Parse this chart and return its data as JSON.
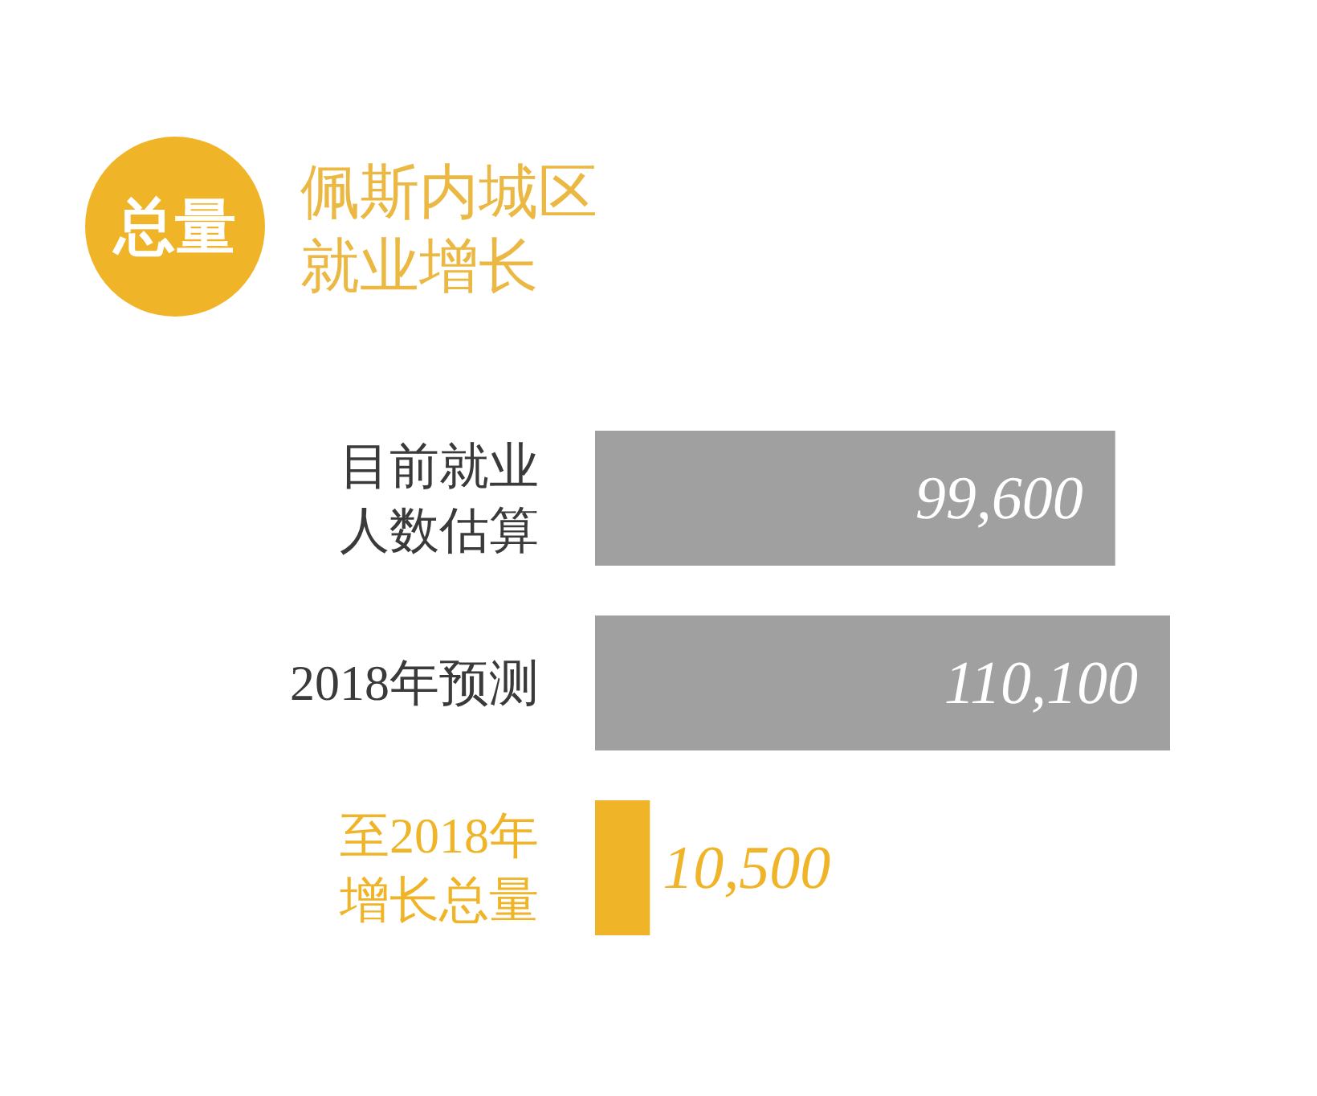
{
  "chart_data": {
    "type": "bar",
    "orientation": "horizontal",
    "title": "佩斯内城区就业增长",
    "annotations": [
      "总量"
    ],
    "categories": [
      "目前就业人数估算",
      "2018年预测",
      "至2018年增长总量"
    ],
    "values": [
      99600,
      110100,
      10500
    ],
    "colors": [
      "#a0a0a0",
      "#a0a0a0",
      "#f0b429"
    ],
    "value_labels": [
      "99,600",
      "110,100",
      "10,500"
    ],
    "tick_labels": "y"
  }
}
